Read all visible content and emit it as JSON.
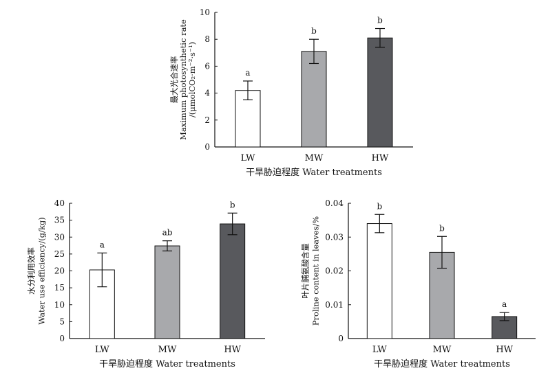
{
  "chart_data": [
    {
      "type": "bar",
      "categories": [
        "LW",
        "MW",
        "HW"
      ],
      "values": [
        4.2,
        7.1,
        8.1
      ],
      "errors": [
        0.7,
        0.9,
        0.7
      ],
      "significance": [
        "a",
        "b",
        "b"
      ],
      "bar_colors": [
        "#ffffff",
        "#a8a9ac",
        "#58595d"
      ],
      "ylim": [
        0,
        10
      ],
      "yticks": [
        "0",
        "2",
        "4",
        "6",
        "8",
        "10"
      ],
      "xlabel": "干旱胁迫程度 Water treatments",
      "ylabel_lines": [
        "最大光合速率",
        "Maximum photosynthetic rate",
        "/(μmolCO₂·m⁻²·s⁻¹)"
      ]
    },
    {
      "type": "bar",
      "categories": [
        "LW",
        "MW",
        "HW"
      ],
      "values": [
        20.3,
        27.4,
        33.9
      ],
      "errors": [
        5.0,
        1.5,
        3.2
      ],
      "significance": [
        "a",
        "ab",
        "b"
      ],
      "bar_colors": [
        "#ffffff",
        "#a8a9ac",
        "#58595d"
      ],
      "ylim": [
        0,
        40
      ],
      "yticks": [
        "0",
        "5",
        "10",
        "15",
        "20",
        "25",
        "30",
        "35",
        "40"
      ],
      "xlabel": "干旱胁迫程度 Water treatments",
      "ylabel_lines": [
        "水分利用效率",
        "Water use efficiency/(g/kg)"
      ]
    },
    {
      "type": "bar",
      "categories": [
        "LW",
        "MW",
        "HW"
      ],
      "values": [
        0.034,
        0.0255,
        0.0065
      ],
      "errors": [
        0.0027,
        0.0047,
        0.0012
      ],
      "significance": [
        "b",
        "b",
        "a"
      ],
      "bar_colors": [
        "#ffffff",
        "#a8a9ac",
        "#58595d"
      ],
      "ylim": [
        0,
        0.04
      ],
      "yticks": [
        "0",
        "0.01",
        "0.02",
        "0.03",
        "0.04"
      ],
      "xlabel": "干旱胁迫程度 Water treatments",
      "ylabel_lines": [
        "叶片脯氨酸含量",
        "Proline content in leaves/%"
      ]
    }
  ]
}
